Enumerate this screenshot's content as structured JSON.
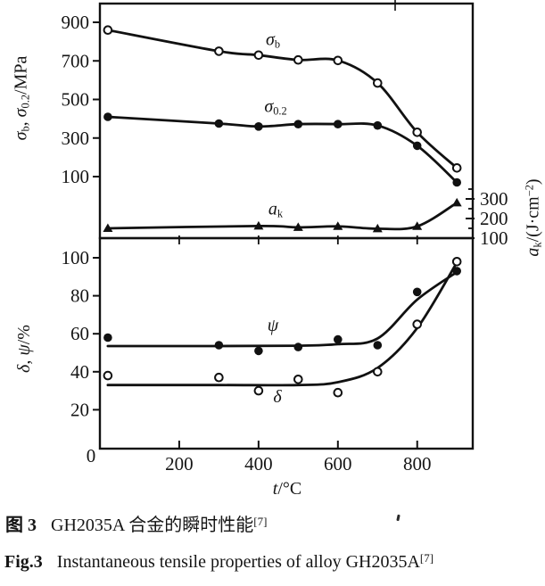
{
  "chart_data": {
    "type": "line",
    "x_axis": {
      "label": "t/°C",
      "range": [
        0,
        940
      ],
      "ticks": [
        200,
        400,
        600,
        800
      ],
      "origin_label": "0"
    },
    "panels": [
      {
        "name": "top",
        "y_left_label": "σb, σ0.2/MPa",
        "y_left_ticks": [
          900,
          700,
          500,
          300,
          100
        ],
        "y_left_range": [
          0,
          1000
        ],
        "y_right_label": "ak/(J·cm−2)",
        "y_right_ticks": [
          300,
          200,
          100
        ],
        "y_right_minor_ticks": [
          150,
          250,
          350
        ]
      },
      {
        "name": "bottom",
        "y_left_label": "δ, ψ/%",
        "y_left_ticks": [
          100,
          80,
          60,
          40,
          20
        ],
        "y_left_range": [
          0,
          105
        ]
      }
    ],
    "series": [
      {
        "name": "sigma_b",
        "label": "σb",
        "axis": "mpa",
        "marker": "circle-open",
        "points": [
          [
            20,
            860
          ],
          [
            300,
            750
          ],
          [
            400,
            730
          ],
          [
            500,
            705
          ],
          [
            600,
            702
          ],
          [
            700,
            585
          ],
          [
            800,
            330
          ],
          [
            900,
            145
          ]
        ]
      },
      {
        "name": "sigma_0_2",
        "label": "σ0.2",
        "axis": "mpa",
        "marker": "circle-filled",
        "points": [
          [
            20,
            410
          ],
          [
            300,
            375
          ],
          [
            400,
            360
          ],
          [
            500,
            372
          ],
          [
            600,
            372
          ],
          [
            700,
            365
          ],
          [
            800,
            260
          ],
          [
            900,
            70
          ]
        ]
      },
      {
        "name": "a_k",
        "label": "ak",
        "axis": "ak",
        "marker": "triangle-filled",
        "points": [
          [
            20,
            150
          ],
          [
            400,
            162
          ],
          [
            500,
            155
          ],
          [
            600,
            160
          ],
          [
            700,
            148
          ],
          [
            800,
            160
          ],
          [
            900,
            280
          ]
        ]
      },
      {
        "name": "psi",
        "label": "ψ",
        "axis": "pct",
        "marker": "circle-filled",
        "points": [
          [
            20,
            58
          ],
          [
            300,
            54
          ],
          [
            400,
            51
          ],
          [
            500,
            53
          ],
          [
            600,
            57
          ],
          [
            700,
            54
          ],
          [
            800,
            82
          ],
          [
            900,
            93
          ]
        ],
        "trend": [
          [
            20,
            53.5
          ],
          [
            300,
            53.5
          ],
          [
            500,
            53.7
          ],
          [
            600,
            54.5
          ],
          [
            700,
            57.5
          ],
          [
            800,
            78
          ],
          [
            900,
            92.5
          ]
        ]
      },
      {
        "name": "delta",
        "label": "δ",
        "axis": "pct",
        "marker": "circle-open",
        "points": [
          [
            20,
            38
          ],
          [
            300,
            37
          ],
          [
            400,
            30
          ],
          [
            500,
            36
          ],
          [
            600,
            29
          ],
          [
            700,
            40
          ],
          [
            800,
            65
          ],
          [
            900,
            98
          ]
        ],
        "trend": [
          [
            20,
            33
          ],
          [
            300,
            33
          ],
          [
            500,
            33
          ],
          [
            600,
            34.5
          ],
          [
            700,
            42
          ],
          [
            800,
            63
          ],
          [
            900,
            97.5
          ]
        ]
      }
    ],
    "line_color": "#111111"
  },
  "labels": {
    "y_top": {
      "s1": "σ",
      "s1sub": "b",
      "mid": ", ",
      "s2": "σ",
      "s2sub": "0.2",
      "unit": "/MPa"
    },
    "y_bottom": {
      "d": "δ",
      "mid": ", ",
      "p": "ψ",
      "unit": "/%"
    },
    "y_right": {
      "a": "a",
      "asub": "k",
      "u1": "/(J·cm",
      "sup": "−2",
      "u2": ")"
    },
    "x": {
      "v": "t",
      "unit": "/°C"
    }
  },
  "series_labels": {
    "sigma_b": {
      "s": "σ",
      "sub": "b"
    },
    "sigma_02": {
      "s": "σ",
      "sub": "0.2"
    },
    "a_k": {
      "a": "a",
      "sub": "k"
    },
    "psi": "ψ",
    "delta": "δ"
  },
  "captions": {
    "zh": {
      "tag": "图 3",
      "text": "GH2035A 合金的瞬时性能",
      "ref": "[7]"
    },
    "en": {
      "tag": "Fig.3",
      "text": "Instantaneous tensile properties of alloy GH2035A",
      "ref": "[7]"
    }
  }
}
